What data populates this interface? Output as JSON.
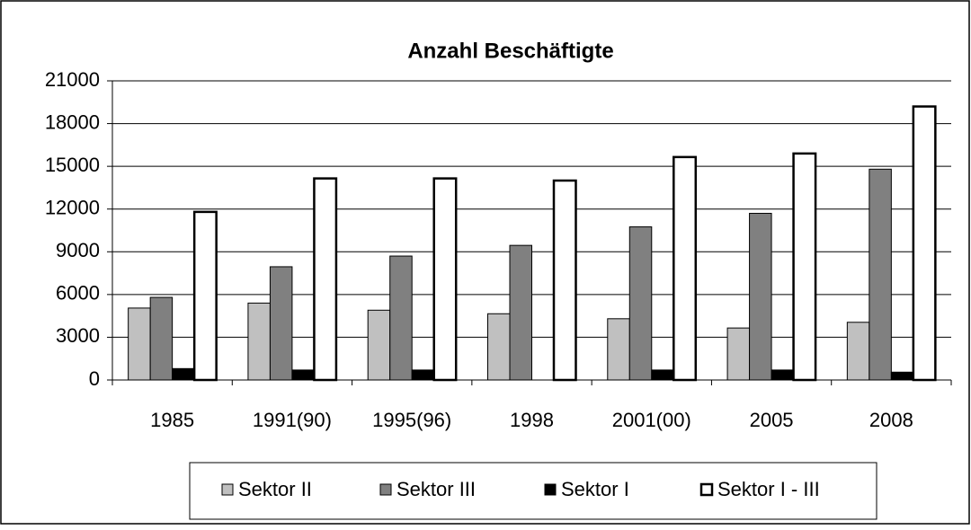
{
  "chart_data": {
    "type": "bar",
    "title": "Anzahl Beschäftigte",
    "categories": [
      "1985",
      "1991(90)",
      "1995(96)",
      "1998",
      "2001(00)",
      "2005",
      "2008"
    ],
    "series": [
      {
        "name": "Sektor II",
        "color": "#c0c0c0",
        "values": [
          5050,
          5400,
          4900,
          4650,
          4300,
          3650,
          4050
        ]
      },
      {
        "name": "Sektor III",
        "color": "#808080",
        "values": [
          5800,
          7950,
          8700,
          9450,
          10750,
          11700,
          14800
        ]
      },
      {
        "name": "Sektor I",
        "color": "#000000",
        "values": [
          800,
          700,
          700,
          null,
          700,
          700,
          550
        ]
      },
      {
        "name": "Sektor I - III",
        "color": "#ffffff",
        "values": [
          11800,
          14150,
          14150,
          14000,
          15650,
          15900,
          19200
        ]
      }
    ],
    "ylim": [
      0,
      21000
    ],
    "yticks": [
      0,
      3000,
      6000,
      9000,
      12000,
      15000,
      18000,
      21000
    ],
    "grid": true,
    "legend": "bottom"
  }
}
